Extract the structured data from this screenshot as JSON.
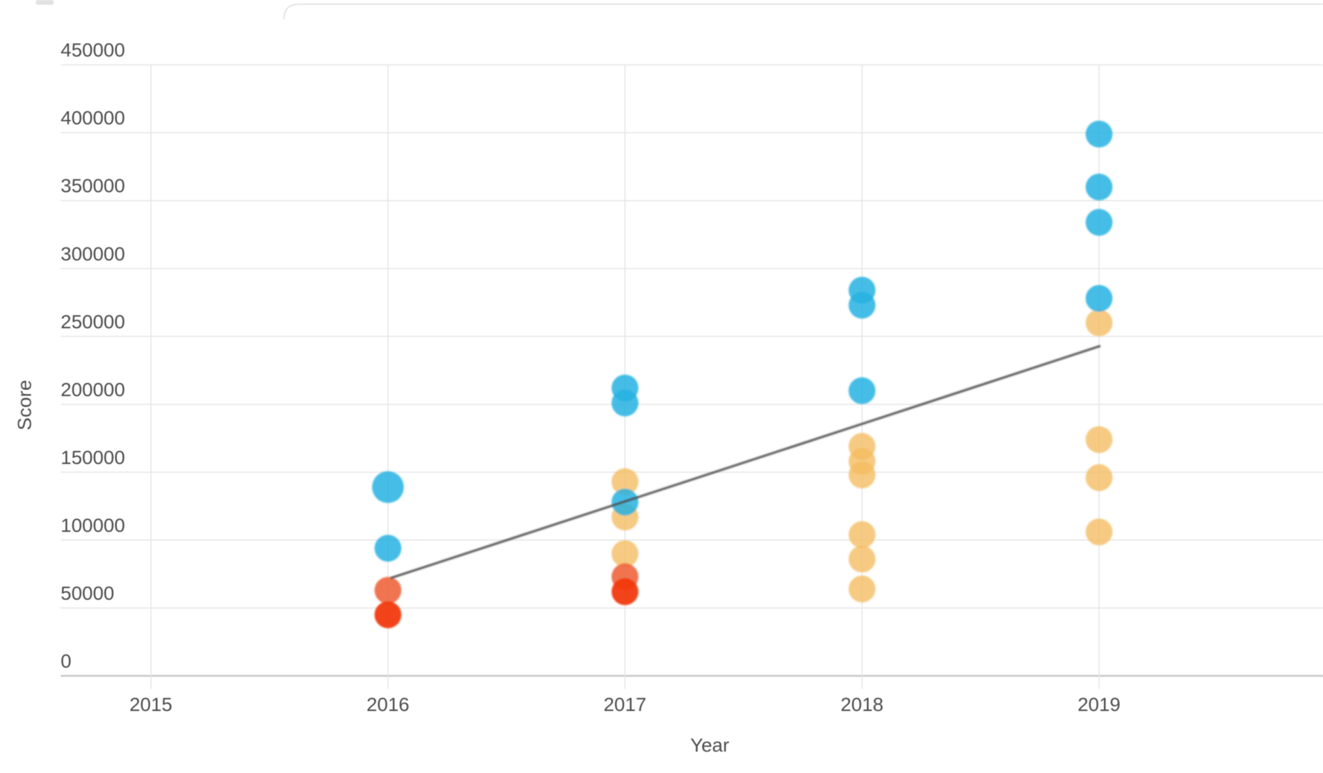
{
  "page": {
    "background": "#ffffff"
  },
  "axes": {
    "ylabel": "Score",
    "xlabel": "Year",
    "y_tick_labels": [
      "450000",
      "400000",
      "350000",
      "300000",
      "250000",
      "200000",
      "150000",
      "100000",
      "50000",
      "0"
    ],
    "x_tick_labels": [
      "2015",
      "2016",
      "2017",
      "2018",
      "2019"
    ]
  },
  "chart_data": {
    "type": "scatter",
    "title": "",
    "xlabel": "Year",
    "ylabel": "Score",
    "x_ticks": [
      2015,
      2016,
      2017,
      2018,
      2019
    ],
    "y_ticks": [
      450000,
      400000,
      350000,
      300000,
      250000,
      200000,
      150000,
      100000,
      50000,
      0
    ],
    "xlim": [
      2014.62,
      2019.95
    ],
    "ylim": [
      0,
      450000
    ],
    "grid": true,
    "legend_position": "none",
    "point_radius_default": 19.5,
    "series": [
      {
        "name": "yellow",
        "color": "#F4BD62",
        "opacity": 0.8,
        "points": [
          {
            "x": 2017,
            "y": 143000
          },
          {
            "x": 2017,
            "y": 117000
          },
          {
            "x": 2017,
            "y": 90000
          },
          {
            "x": 2018,
            "y": 169000
          },
          {
            "x": 2018,
            "y": 158000
          },
          {
            "x": 2018,
            "y": 148000
          },
          {
            "x": 2018,
            "y": 104000
          },
          {
            "x": 2018,
            "y": 86000
          },
          {
            "x": 2018,
            "y": 64000
          },
          {
            "x": 2019,
            "y": 260000
          },
          {
            "x": 2019,
            "y": 174000
          },
          {
            "x": 2019,
            "y": 146000
          },
          {
            "x": 2019,
            "y": 106000
          }
        ]
      },
      {
        "name": "blue",
        "color": "#27B2E2",
        "opacity": 0.85,
        "points": [
          {
            "x": 2016,
            "y": 139000,
            "r": 23
          },
          {
            "x": 2016,
            "y": 94000
          },
          {
            "x": 2017,
            "y": 212000
          },
          {
            "x": 2017,
            "y": 201000
          },
          {
            "x": 2017,
            "y": 128000
          },
          {
            "x": 2018,
            "y": 284000
          },
          {
            "x": 2018,
            "y": 273000
          },
          {
            "x": 2018,
            "y": 210000
          },
          {
            "x": 2019,
            "y": 399000
          },
          {
            "x": 2019,
            "y": 360000
          },
          {
            "x": 2019,
            "y": 334000
          },
          {
            "x": 2019,
            "y": 278000
          }
        ]
      },
      {
        "name": "orange",
        "color": "#F0653E",
        "opacity": 0.9,
        "points": [
          {
            "x": 2016,
            "y": 63000
          },
          {
            "x": 2017,
            "y": 73000
          }
        ]
      },
      {
        "name": "red",
        "color": "#F23A0C",
        "opacity": 0.95,
        "points": [
          {
            "x": 2016,
            "y": 45000
          },
          {
            "x": 2017,
            "y": 62000
          }
        ]
      }
    ],
    "trendline": {
      "x1": 2016,
      "y1": 72000,
      "x2": 2019,
      "y2": 243000,
      "color": "#4D4D4D",
      "width": 3
    },
    "style": {
      "gridline_color": "#e5e5e5",
      "axisline_color": "#c6c6c6",
      "label_color": "#4d4d4d"
    }
  },
  "decor": {
    "card_edge_color": "#e4e4e4",
    "fragment_color": "#e2e2e2"
  }
}
